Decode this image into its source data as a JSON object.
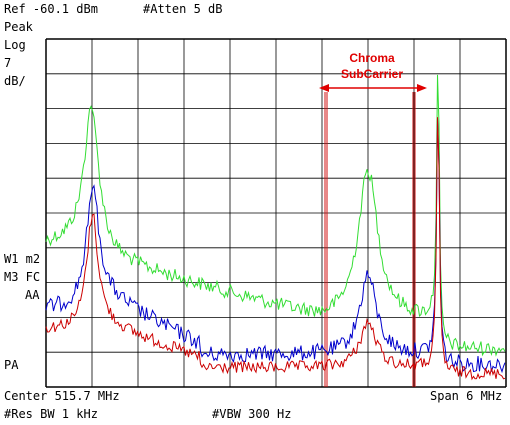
{
  "header": {
    "ref_label": "Ref -60.1 dBm",
    "atten_label": "#Atten 5 dB"
  },
  "left_panel": {
    "detector": "Peak",
    "scale_type": "Log",
    "scale_value": "7",
    "scale_unit": "dB/",
    "trace_w1": "W1 m2",
    "trace_m3": "M3 FC",
    "aa": "AA",
    "pa": "PA"
  },
  "footer": {
    "center": "Center 515.7 MHz",
    "span": "Span 6 MHz",
    "res_bw": "#Res BW 1 kHz",
    "vbw": "#VBW 300 Hz"
  },
  "annotation": {
    "line1": "Chroma",
    "line2": "SubCarrier",
    "color": "#e00000"
  },
  "colors": {
    "grid": "#000000",
    "trace_green": "#33dd33",
    "trace_blue": "#0000cc",
    "trace_red": "#cc0000",
    "marker_red": "#d01010"
  }
}
